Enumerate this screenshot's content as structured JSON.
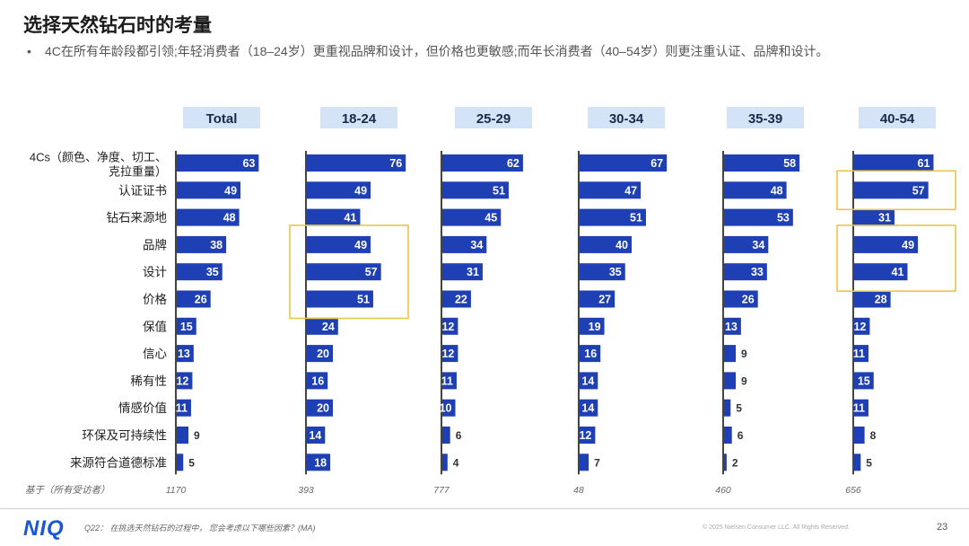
{
  "title": "选择天然钻石时的考量",
  "bullet": {
    "dot": "•",
    "text": "4C在所有年龄段都引领;年轻消费者（18–24岁）更重视品牌和设计，但价格也更敏感;而年长消费者（40–54岁）则更注重认证、品牌和设计。"
  },
  "colors": {
    "bar": "#1f3fb4",
    "header_bg": "#d4e3f5",
    "highlight": "#e8c64a",
    "axis": "#444444"
  },
  "chart_data": {
    "type": "bar",
    "orientation": "horizontal",
    "categories": [
      "4Cs（颜色、净度、切工、克拉重量）",
      "认证证书",
      "钻石来源地",
      "品牌",
      "设计",
      "价格",
      "保值",
      "信心",
      "稀有性",
      "情感价值",
      "环保及可持续性",
      "来源符合道德标准"
    ],
    "category_lines": [
      [
        "4Cs（颜色、净度、切工、",
        "克拉重量）"
      ],
      [
        "认证证书"
      ],
      [
        "钻石来源地"
      ],
      [
        "品牌"
      ],
      [
        "设计"
      ],
      [
        "价格"
      ],
      [
        "保值"
      ],
      [
        "信心"
      ],
      [
        "稀有性"
      ],
      [
        "情感价值"
      ],
      [
        "环保及可持续性"
      ],
      [
        "来源符合道德标准"
      ]
    ],
    "series": [
      {
        "name": "Total",
        "values": [
          63,
          49,
          48,
          38,
          35,
          26,
          15,
          13,
          12,
          11,
          9,
          5
        ],
        "base": "1170"
      },
      {
        "name": "18-24",
        "values": [
          76,
          49,
          41,
          49,
          57,
          51,
          24,
          20,
          16,
          20,
          14,
          18
        ],
        "base": "393"
      },
      {
        "name": "25-29",
        "values": [
          62,
          51,
          45,
          34,
          31,
          22,
          12,
          12,
          11,
          10,
          6,
          4
        ],
        "base": "777"
      },
      {
        "name": "30-34",
        "values": [
          67,
          47,
          51,
          40,
          35,
          27,
          19,
          16,
          14,
          14,
          12,
          7
        ],
        "base": "48"
      },
      {
        "name": "35-39",
        "values": [
          58,
          48,
          53,
          34,
          33,
          26,
          13,
          9,
          9,
          5,
          6,
          2
        ],
        "base": "460"
      },
      {
        "name": "40-54",
        "values": [
          61,
          57,
          31,
          49,
          41,
          28,
          12,
          11,
          15,
          11,
          8,
          5
        ],
        "base": "656"
      }
    ],
    "base_label": "基于（所有受访者）",
    "highlights": [
      {
        "series": "18-24",
        "categories": [
          "品牌",
          "设计",
          "价格"
        ]
      },
      {
        "series": "40-54",
        "categories": [
          "认证证书"
        ]
      },
      {
        "series": "40-54",
        "categories": [
          "品牌",
          "设计"
        ]
      }
    ],
    "xlim": [
      0,
      100
    ]
  },
  "footer": {
    "logo": "NIQ",
    "question": "Q22：  在挑选天然钻石的过程中，  您会考虑以下哪些因素？(MA)",
    "copyright": "© 2025 Nielsen Consumer LLC. All Rights Reserved.",
    "page": "23"
  }
}
